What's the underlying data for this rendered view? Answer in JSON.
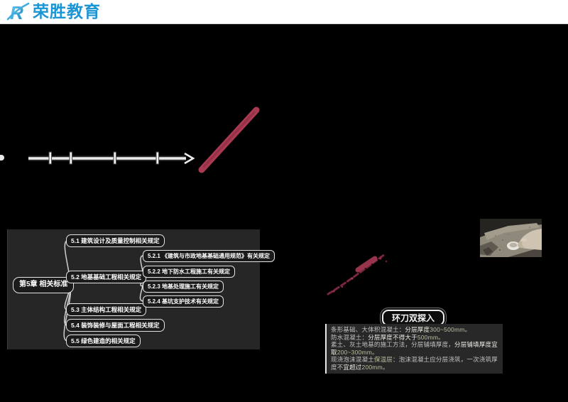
{
  "header": {
    "logo_text": "荣胜教育",
    "brand_color": "#1b95d4"
  },
  "mindmap": {
    "root": {
      "label": "第5章 相关标准"
    },
    "children": [
      {
        "label": "5.1 建筑设计及质量控制相关规定"
      },
      {
        "label": "5.2 地基基础工程相关规定",
        "children": [
          {
            "label": "5.2.1 《建筑与市政地基基础通用规范》有关规定"
          },
          {
            "label": "5.2.2 地下防水工程施工有关规定"
          },
          {
            "label": "5.2.3 地基处理施工有关规定"
          },
          {
            "label": "5.2.4 基坑支护技术有关规定"
          }
        ]
      },
      {
        "label": "5.3 主体结构工程相关规定"
      },
      {
        "label": "5.4 装饰装修与屋面工程相关规定"
      },
      {
        "label": "5.5 绿色建造的相关规定"
      }
    ]
  },
  "note": {
    "title": "环刀双探入",
    "lines": [
      [
        {
          "text": "条形基础、大体积混凝土：",
          "tone": "normal"
        },
        {
          "text": "分层厚度",
          "tone": "em"
        },
        {
          "text": "300~500mm。",
          "tone": "num"
        }
      ],
      [
        {
          "text": "防水混凝土：",
          "tone": "normal"
        },
        {
          "text": "分层厚度不得大于",
          "tone": "em"
        },
        {
          "text": "500mm。",
          "tone": "num"
        }
      ],
      [
        {
          "text": "素土、灰土地基的施工方法，分层铺填厚度，",
          "tone": "normal"
        },
        {
          "text": "分层铺填厚度宜取",
          "tone": "em"
        },
        {
          "text": "200~300mm。",
          "tone": "num"
        }
      ],
      [
        {
          "text": "现浇泡沫混凝土",
          "tone": "normal"
        },
        {
          "text": "保温层",
          "tone": "num"
        },
        {
          "text": "：泡沫混凝土应分层浇筑，一次浇筑厚度不",
          "tone": "normal"
        },
        {
          "text": "宜超过",
          "tone": "em"
        },
        {
          "text": "200mm。",
          "tone": "num"
        }
      ]
    ]
  },
  "colors": {
    "marker_red": "#a93a52",
    "panel_bg": "#262626",
    "node_border": "#e3e3e3"
  },
  "icons": {
    "logo_icon": "rongsheng-r-logo",
    "timeline_arrow": "right-arrow-timeline",
    "photo": "ring-cutter-soil-sampling-photo"
  }
}
